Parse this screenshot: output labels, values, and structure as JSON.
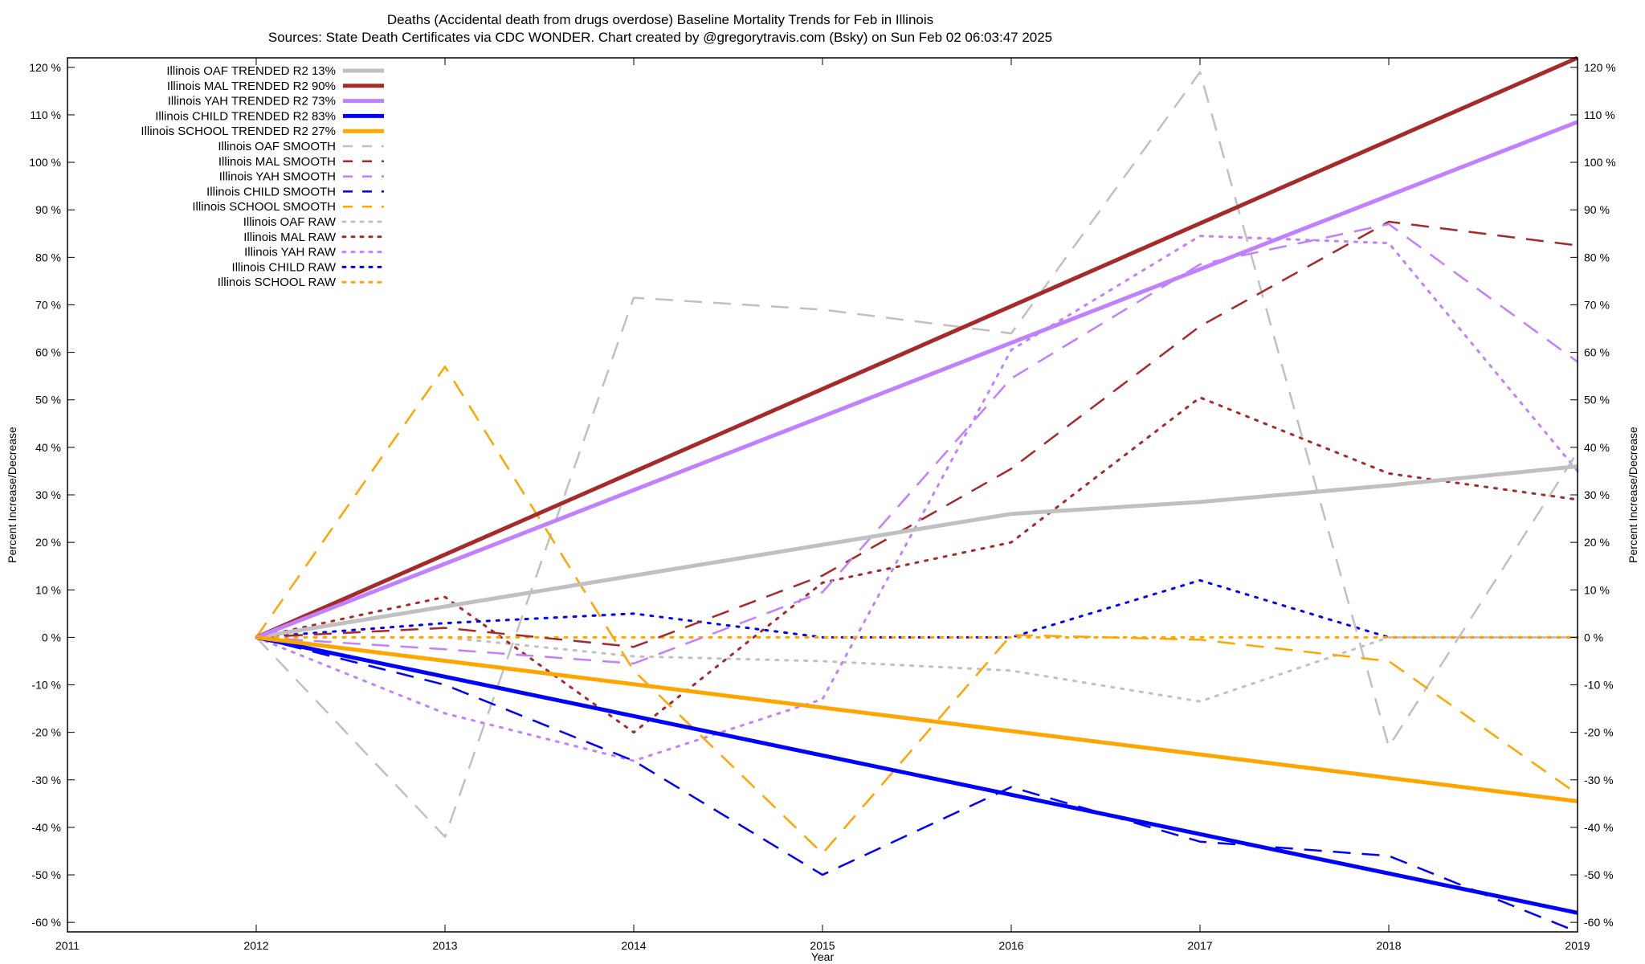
{
  "chart_data": {
    "type": "line",
    "title": "Deaths (Accidental death from drugs overdose)  Baseline Mortality Trends for Feb in Illinois",
    "subtitle": "Sources: State Death Certificates via CDC WONDER.              Chart created by @gregorytravis.com (Bsky) on Sun Feb 02 06:03:47 2025",
    "xlabel": "Year",
    "ylabel": "Percent Increase/Decrease",
    "y2label": "Percent Increase/Decrease",
    "xlim": [
      2011,
      2019
    ],
    "ylim": [
      -62,
      122
    ],
    "x_ticks": [
      "2011",
      "2012",
      "2013",
      "2014",
      "2015",
      "2016",
      "2017",
      "2018",
      "2019"
    ],
    "y_ticks": [
      {
        "v": 120,
        "label": "120 %"
      },
      {
        "v": 110,
        "label": "110 %"
      },
      {
        "v": 100,
        "label": "100 %"
      },
      {
        "v": 90,
        "label": "90 %"
      },
      {
        "v": 80,
        "label": "80 %"
      },
      {
        "v": 70,
        "label": "70 %"
      },
      {
        "v": 60,
        "label": "60 %"
      },
      {
        "v": 50,
        "label": "50 %"
      },
      {
        "v": 40,
        "label": "40 %"
      },
      {
        "v": 30,
        "label": "30 %"
      },
      {
        "v": 20,
        "label": "20 %"
      },
      {
        "v": 10,
        "label": "10 %"
      },
      {
        "v": 0,
        "label": "0 %"
      },
      {
        "v": -10,
        "label": "-10 %"
      },
      {
        "v": -20,
        "label": "-20 %"
      },
      {
        "v": -30,
        "label": "-30 %"
      },
      {
        "v": -40,
        "label": "-40 %"
      },
      {
        "v": -50,
        "label": "-50 %"
      },
      {
        "v": -60,
        "label": "-60 %"
      }
    ],
    "legend_position": "top-left",
    "grid": false,
    "series": [
      {
        "name": "Illinois OAF TRENDED R2  13%",
        "style": "solid",
        "color": "#c0c0c0",
        "x": [
          2012,
          2013,
          2014,
          2015,
          2016,
          2017,
          2018,
          2019
        ],
        "y": [
          0,
          6.5,
          13,
          19.5,
          26,
          28.5,
          32,
          36
        ]
      },
      {
        "name": "Illinois MAL TRENDED R2  90%",
        "style": "solid",
        "color": "#a52a2a",
        "x": [
          2012,
          2019
        ],
        "y": [
          0,
          122
        ]
      },
      {
        "name": "Illinois YAH TRENDED R2  73%",
        "style": "solid",
        "color": "#c080ff",
        "x": [
          2012,
          2019
        ],
        "y": [
          0,
          108.5
        ]
      },
      {
        "name": "Illinois CHILD TRENDED R2  83%",
        "style": "solid",
        "color": "#0000ff",
        "x": [
          2012,
          2019
        ],
        "y": [
          0,
          -58
        ]
      },
      {
        "name": "Illinois SCHOOL TRENDED R2  27%",
        "style": "solid",
        "color": "#ffa500",
        "x": [
          2012,
          2019
        ],
        "y": [
          0,
          -34.5
        ]
      },
      {
        "name": "Illinois OAF SMOOTH",
        "style": "dashed",
        "color": "#c0c0c0",
        "x": [
          2012,
          2013,
          2014,
          2015,
          2016,
          2017,
          2018,
          2019
        ],
        "y": [
          0,
          -42,
          71.5,
          69,
          64,
          119,
          -23,
          39
        ]
      },
      {
        "name": "Illinois MAL SMOOTH",
        "style": "dashed",
        "color": "#a52a2a",
        "x": [
          2012,
          2013,
          2014,
          2015,
          2016,
          2017,
          2018,
          2019
        ],
        "y": [
          0,
          2,
          -2,
          13,
          35.5,
          65.5,
          87.5,
          82.5
        ]
      },
      {
        "name": "Illinois YAH SMOOTH",
        "style": "dashed",
        "color": "#c080ff",
        "x": [
          2012,
          2013,
          2014,
          2015,
          2016,
          2017,
          2018,
          2019
        ],
        "y": [
          0,
          -2.5,
          -5.5,
          9.5,
          54.5,
          78.5,
          87,
          58
        ]
      },
      {
        "name": "Illinois CHILD SMOOTH",
        "style": "dashed",
        "color": "#0000ff",
        "x": [
          2012,
          2013,
          2014,
          2015,
          2016,
          2017,
          2018,
          2019
        ],
        "y": [
          0,
          -10,
          -26,
          -50,
          -31.5,
          -43,
          -46,
          -62
        ]
      },
      {
        "name": "Illinois SCHOOL SMOOTH",
        "style": "dashed",
        "color": "#ffa500",
        "x": [
          2012,
          2013,
          2014,
          2015,
          2016,
          2017,
          2018,
          2019
        ],
        "y": [
          0,
          57,
          -7,
          -45.5,
          0.5,
          -0.5,
          -5,
          -33
        ]
      },
      {
        "name": "Illinois OAF RAW",
        "style": "dotted",
        "color": "#c0c0c0",
        "x": [
          2012,
          2013,
          2014,
          2015,
          2016,
          2017,
          2018,
          2019
        ],
        "y": [
          0,
          0,
          -4,
          -5,
          -7,
          -13.5,
          0,
          0
        ]
      },
      {
        "name": "Illinois MAL RAW",
        "style": "dotted",
        "color": "#a52a2a",
        "x": [
          2012,
          2013,
          2014,
          2015,
          2016,
          2017,
          2018,
          2019
        ],
        "y": [
          0,
          8.5,
          -20,
          11.5,
          20,
          50.5,
          34.5,
          29
        ]
      },
      {
        "name": "Illinois YAH RAW",
        "style": "dotted",
        "color": "#c080ff",
        "x": [
          2012,
          2013,
          2014,
          2015,
          2016,
          2017,
          2018,
          2019
        ],
        "y": [
          0,
          -16,
          -26,
          -13,
          60.5,
          84.5,
          83,
          35
        ]
      },
      {
        "name": "Illinois CHILD RAW",
        "style": "dotted",
        "color": "#0000ff",
        "x": [
          2012,
          2013,
          2014,
          2015,
          2016,
          2017,
          2018,
          2019
        ],
        "y": [
          0,
          3,
          5,
          0,
          0,
          12,
          0,
          0
        ]
      },
      {
        "name": "Illinois SCHOOL RAW",
        "style": "dotted",
        "color": "#ffa500",
        "x": [
          2012,
          2013,
          2014,
          2015,
          2016,
          2017,
          2018,
          2019
        ],
        "y": [
          0,
          0,
          0,
          0,
          0,
          0,
          0,
          0
        ]
      }
    ]
  }
}
